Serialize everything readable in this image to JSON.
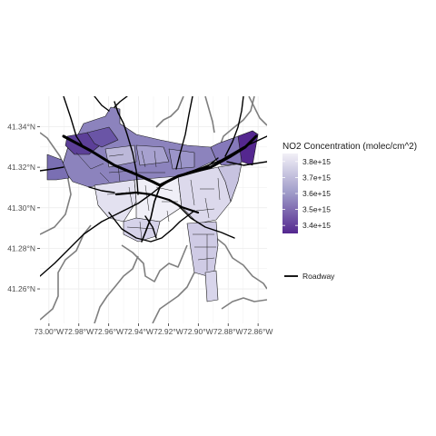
{
  "map": {
    "x_ticks": [
      "73.00°W",
      "72.98°W",
      "72.96°W",
      "72.94°W",
      "72.92°W",
      "72.90°W",
      "72.88°W",
      "72.86°W"
    ],
    "y_ticks": [
      "41.34°N",
      "41.32°N",
      "41.30°N",
      "41.28°N",
      "41.26°N"
    ],
    "colors": {
      "panel_background": "#ffffff",
      "grid": "#ebebeb",
      "boundary": "#7f7f7f",
      "tract_border": "#1a1a1a",
      "roadway": "#000000",
      "fill_low": "#54278f",
      "fill_mid": "#9e9ac8",
      "fill_high": "#f2f0f7"
    }
  },
  "legend": {
    "fill_title": "NO2 Concentration (molec/cm^2)",
    "fill_labels": [
      "3.8e+15",
      "3.7e+15",
      "3.6e+15",
      "3.5e+15",
      "3.4e+15"
    ],
    "line_label": "Roadway"
  },
  "chart_data": {
    "type": "choropleth",
    "xlabel": "",
    "ylabel": "",
    "x_ticks": [
      -73.0,
      -72.98,
      -72.96,
      -72.94,
      -72.92,
      -72.9,
      -72.88,
      -72.86
    ],
    "y_ticks": [
      41.34,
      41.32,
      41.3,
      41.28,
      41.26
    ],
    "fill_variable": "NO2 Concentration (molec/cm^2)",
    "fill_scale": {
      "min": 3350000000000000.0,
      "max": 3850000000000000.0,
      "breaks": [
        3400000000000000.0,
        3500000000000000.0,
        3600000000000000.0,
        3700000000000000.0,
        3800000000000000.0
      ]
    },
    "line_layer": "Roadway"
  }
}
